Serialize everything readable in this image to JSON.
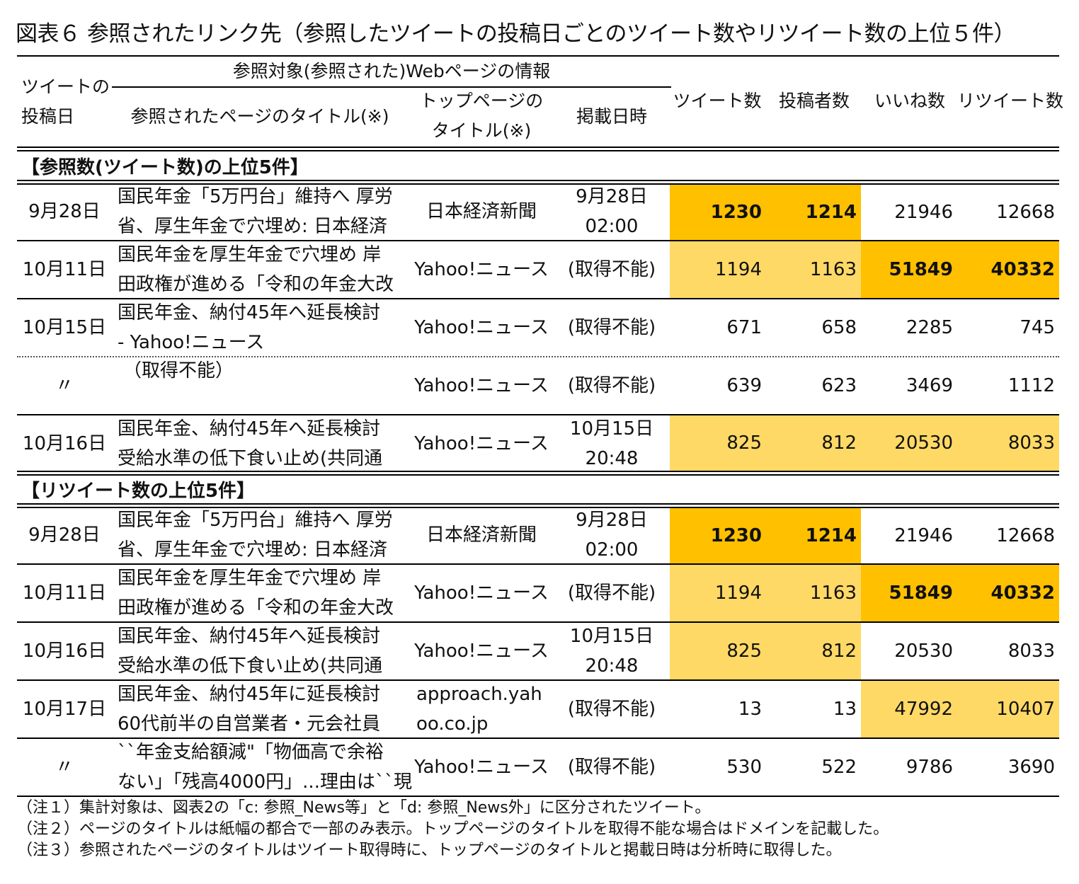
{
  "title": "図表６ 参照されたリンク先（参照したツイートの投稿日ごとのツイート数やリツイート数の上位５件）",
  "header": {
    "post_date_1": "ツイートの",
    "post_date_2": "投稿日",
    "group": "参照対象(参照された)Webページの情報",
    "page_title": "参照されたページのタイトル(※)",
    "top_title_1": "トップページの",
    "top_title_2": "タイトル(※)",
    "published": "掲載日時",
    "tweets": "ツイート数",
    "posters": "投稿者数",
    "likes": "いいね数",
    "retweets": "リツイート数"
  },
  "section1": {
    "label": "【参照数(ツイート数)の上位5件】",
    "rows": [
      {
        "date": "9月28日",
        "title1": "国民年金「5万円台」維持へ 厚労",
        "title2": "省、厚生年金で穴埋め: 日本経済",
        "top": "日本経済新聞",
        "pub1": "9月28日",
        "pub2": "02:00",
        "tweets": "1230",
        "posters": "1214",
        "likes": "21946",
        "retweets": "12668"
      },
      {
        "date": "10月11日",
        "title1": "国民年金を厚生年金で穴埋め 岸",
        "title2": "田政権が進める「令和の年金大改",
        "top": "Yahoo!ニュース",
        "pub1": "(取得不能)",
        "pub2": "",
        "tweets": "1194",
        "posters": "1163",
        "likes": "51849",
        "retweets": "40332"
      },
      {
        "date": "10月15日",
        "title1": "国民年金、納付45年へ延長検討",
        "title2": "- Yahoo!ニュース",
        "top": "Yahoo!ニュース",
        "pub1": "(取得不能)",
        "pub2": "",
        "tweets": "671",
        "posters": "658",
        "likes": "2285",
        "retweets": "745"
      },
      {
        "date": "〃",
        "title1": "（取得不能）",
        "title2": "",
        "top": "Yahoo!ニュース",
        "pub1": "(取得不能)",
        "pub2": "",
        "tweets": "639",
        "posters": "623",
        "likes": "3469",
        "retweets": "1112"
      },
      {
        "date": "10月16日",
        "title1": "国民年金、納付45年へ延長検討",
        "title2": "受給水準の低下食い止め(共同通",
        "top": "Yahoo!ニュース",
        "pub1": "10月15日",
        "pub2": "20:48",
        "tweets": "825",
        "posters": "812",
        "likes": "20530",
        "retweets": "8033"
      }
    ]
  },
  "section2": {
    "label": "【リツイート数の上位5件】",
    "rows": [
      {
        "date": "9月28日",
        "title1": "国民年金「5万円台」維持へ 厚労",
        "title2": "省、厚生年金で穴埋め: 日本経済",
        "top": "日本経済新聞",
        "top2": "",
        "pub1": "9月28日",
        "pub2": "02:00",
        "tweets": "1230",
        "posters": "1214",
        "likes": "21946",
        "retweets": "12668"
      },
      {
        "date": "10月11日",
        "title1": "国民年金を厚生年金で穴埋め 岸",
        "title2": "田政権が進める「令和の年金大改",
        "top": "Yahoo!ニュース",
        "top2": "",
        "pub1": "(取得不能)",
        "pub2": "",
        "tweets": "1194",
        "posters": "1163",
        "likes": "51849",
        "retweets": "40332"
      },
      {
        "date": "10月16日",
        "title1": "国民年金、納付45年へ延長検討",
        "title2": "受給水準の低下食い止め(共同通",
        "top": "Yahoo!ニュース",
        "top2": "",
        "pub1": "10月15日",
        "pub2": "20:48",
        "tweets": "825",
        "posters": "812",
        "likes": "20530",
        "retweets": "8033"
      },
      {
        "date": "10月17日",
        "title1": "国民年金、納付45年に延長検討",
        "title2": "60代前半の自営業者・元会社員",
        "top": "approach.yah",
        "top2": "oo.co.jp",
        "pub1": "(取得不能)",
        "pub2": "",
        "tweets": "13",
        "posters": "13",
        "likes": "47992",
        "retweets": "10407"
      },
      {
        "date": "〃",
        "title1": "``年金支給額減\"「物価高で余裕",
        "title2": "ない」「残高4000円」...理由は``現",
        "top": "Yahoo!ニュース",
        "top2": "",
        "pub1": "(取得不能)",
        "pub2": "",
        "tweets": "530",
        "posters": "522",
        "likes": "9786",
        "retweets": "3690"
      }
    ]
  },
  "notes": [
    "（注１）集計対象は、図表2の「c: 参照_News等」と「d: 参照_News外」に区分されたツイート。",
    "（注２）ページのタイトルは紙幅の都合で一部のみ表示。トップページのタイトルを取得不能な場合はドメインを記載した。",
    "（注３）参照されたページのタイトルはツイート取得時に、トップページのタイトルと掲載日時は分析時に取得した。"
  ],
  "colors": {
    "highlight_dark": "#FFC000",
    "highlight_light": "#FFD966"
  }
}
